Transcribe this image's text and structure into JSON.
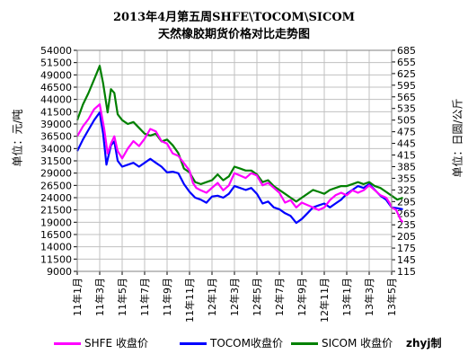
{
  "chart_data": {
    "type": "line",
    "title": "2013年4月第五周SHFE\\TOCOM\\SICOM",
    "subtitle": "天然橡胶期货价格对比走势图",
    "ylabel_left": "单位：元/吨",
    "ylabel_right": "单位：日圆/公斤",
    "author": "zhyj制",
    "x_ticks": [
      "11年1月",
      "11年3月",
      "11年5月",
      "11年7月",
      "11年9月",
      "11年11月",
      "12年1月",
      "12年3月",
      "12年5月",
      "12年7月",
      "12年9月",
      "12年11月",
      "13年1月",
      "13年3月",
      "13年5月"
    ],
    "y_left": {
      "min": 9000,
      "max": 54000,
      "step": 2500,
      "ticks": [
        "54000",
        "51500",
        "49000",
        "46500",
        "44000",
        "41500",
        "39000",
        "36500",
        "34000",
        "31500",
        "29000",
        "26500",
        "24000",
        "21500",
        "19000",
        "16500",
        "14000",
        "11500",
        "9000"
      ]
    },
    "y_right": {
      "min": 115,
      "max": 685,
      "step": 30,
      "ticks": [
        "685",
        "655",
        "625",
        "595",
        "565",
        "535",
        "505",
        "475",
        "445",
        "415",
        "385",
        "355",
        "325",
        "295",
        "265",
        "235",
        "205",
        "175",
        "145",
        "115"
      ]
    },
    "grid": true,
    "legend_position": "bottom",
    "series": [
      {
        "name": "SHFE 收盘价",
        "axis": "left",
        "color": "#ff00ff",
        "values": [
          [
            0,
            36500
          ],
          [
            0.5,
            38500
          ],
          [
            1,
            40000
          ],
          [
            1.5,
            42000
          ],
          [
            2,
            43000
          ],
          [
            2.4,
            38000
          ],
          [
            2.7,
            33000
          ],
          [
            3,
            35000
          ],
          [
            3.3,
            36500
          ],
          [
            3.6,
            33500
          ],
          [
            4,
            32000
          ],
          [
            4.5,
            34000
          ],
          [
            5,
            35500
          ],
          [
            5.5,
            34500
          ],
          [
            6,
            36000
          ],
          [
            6.5,
            38000
          ],
          [
            7,
            37500
          ],
          [
            7.5,
            35500
          ],
          [
            8,
            35000
          ],
          [
            8.5,
            33000
          ],
          [
            9,
            32500
          ],
          [
            9.5,
            31000
          ],
          [
            10,
            29500
          ],
          [
            10.3,
            27000
          ],
          [
            10.6,
            26000
          ],
          [
            11,
            25500
          ],
          [
            11.5,
            25000
          ],
          [
            12,
            26000
          ],
          [
            12.5,
            27000
          ],
          [
            13,
            25500
          ],
          [
            13.5,
            26500
          ],
          [
            14,
            29000
          ],
          [
            14.5,
            28500
          ],
          [
            15,
            28000
          ],
          [
            15.5,
            29000
          ],
          [
            16,
            28500
          ],
          [
            16.5,
            26500
          ],
          [
            17,
            27000
          ],
          [
            17.5,
            26000
          ],
          [
            18,
            25000
          ],
          [
            18.5,
            23000
          ],
          [
            19,
            23500
          ],
          [
            19.5,
            22000
          ],
          [
            20,
            23000
          ],
          [
            20.5,
            22500
          ],
          [
            21,
            22000
          ],
          [
            21.5,
            21500
          ],
          [
            22,
            22000
          ],
          [
            22.5,
            23500
          ],
          [
            23,
            24500
          ],
          [
            23.5,
            25000
          ],
          [
            24,
            24500
          ],
          [
            24.5,
            25500
          ],
          [
            25,
            25000
          ],
          [
            25.5,
            25500
          ],
          [
            26,
            26500
          ],
          [
            26.5,
            25500
          ],
          [
            27,
            24500
          ],
          [
            27.5,
            24000
          ],
          [
            27.8,
            23000
          ],
          [
            28,
            22000
          ],
          [
            28.4,
            21500
          ],
          [
            28.6,
            20500
          ],
          [
            28.8,
            19500
          ],
          [
            29,
            19000
          ]
        ]
      },
      {
        "name": "TOCOM收盘价",
        "axis": "right",
        "color": "#0000ff",
        "values": [
          [
            0,
            425
          ],
          [
            0.5,
            455
          ],
          [
            1,
            480
          ],
          [
            1.5,
            505
          ],
          [
            2,
            525
          ],
          [
            2.3,
            470
          ],
          [
            2.6,
            390
          ],
          [
            3,
            440
          ],
          [
            3.3,
            450
          ],
          [
            3.6,
            400
          ],
          [
            4,
            385
          ],
          [
            4.5,
            390
          ],
          [
            5,
            395
          ],
          [
            5.5,
            385
          ],
          [
            6,
            395
          ],
          [
            6.5,
            405
          ],
          [
            7,
            395
          ],
          [
            7.5,
            385
          ],
          [
            8,
            370
          ],
          [
            8.5,
            372
          ],
          [
            9,
            368
          ],
          [
            9.5,
            340
          ],
          [
            10,
            320
          ],
          [
            10.5,
            305
          ],
          [
            11,
            300
          ],
          [
            11.5,
            292
          ],
          [
            12,
            308
          ],
          [
            12.5,
            310
          ],
          [
            13,
            305
          ],
          [
            13.5,
            315
          ],
          [
            14,
            335
          ],
          [
            14.5,
            330
          ],
          [
            15,
            325
          ],
          [
            15.5,
            330
          ],
          [
            16,
            315
          ],
          [
            16.5,
            290
          ],
          [
            17,
            295
          ],
          [
            17.5,
            280
          ],
          [
            18,
            275
          ],
          [
            18.5,
            265
          ],
          [
            19,
            258
          ],
          [
            19.5,
            240
          ],
          [
            20,
            250
          ],
          [
            20.5,
            265
          ],
          [
            21,
            280
          ],
          [
            21.5,
            285
          ],
          [
            22,
            290
          ],
          [
            22.5,
            280
          ],
          [
            23,
            290
          ],
          [
            23.5,
            300
          ],
          [
            24,
            315
          ],
          [
            24.5,
            325
          ],
          [
            25,
            335
          ],
          [
            25.5,
            330
          ],
          [
            26,
            340
          ],
          [
            26.5,
            325
          ],
          [
            27,
            310
          ],
          [
            27.5,
            300
          ],
          [
            28,
            280
          ],
          [
            28.5,
            278
          ],
          [
            29,
            275
          ]
        ]
      },
      {
        "name": "SICOM 收盘价",
        "axis": "right",
        "color": "#008000",
        "values": [
          [
            0,
            505
          ],
          [
            0.5,
            545
          ],
          [
            1,
            575
          ],
          [
            1.5,
            610
          ],
          [
            2,
            645
          ],
          [
            2.3,
            600
          ],
          [
            2.7,
            525
          ],
          [
            3,
            585
          ],
          [
            3.3,
            575
          ],
          [
            3.6,
            520
          ],
          [
            4,
            505
          ],
          [
            4.5,
            495
          ],
          [
            5,
            500
          ],
          [
            5.5,
            485
          ],
          [
            6,
            470
          ],
          [
            6.5,
            465
          ],
          [
            7,
            470
          ],
          [
            7.5,
            450
          ],
          [
            8,
            455
          ],
          [
            8.5,
            440
          ],
          [
            9,
            420
          ],
          [
            9.5,
            380
          ],
          [
            10,
            370
          ],
          [
            10.5,
            345
          ],
          [
            11,
            340
          ],
          [
            11.5,
            345
          ],
          [
            12,
            350
          ],
          [
            12.5,
            365
          ],
          [
            13,
            350
          ],
          [
            13.5,
            360
          ],
          [
            14,
            385
          ],
          [
            14.5,
            380
          ],
          [
            15,
            375
          ],
          [
            15.5,
            375
          ],
          [
            16,
            365
          ],
          [
            16.5,
            345
          ],
          [
            17,
            350
          ],
          [
            17.5,
            335
          ],
          [
            18,
            325
          ],
          [
            18.5,
            315
          ],
          [
            19,
            305
          ],
          [
            19.5,
            295
          ],
          [
            20,
            305
          ],
          [
            20.5,
            315
          ],
          [
            21,
            325
          ],
          [
            21.5,
            320
          ],
          [
            22,
            315
          ],
          [
            22.5,
            325
          ],
          [
            23,
            330
          ],
          [
            23.5,
            335
          ],
          [
            24,
            335
          ],
          [
            24.5,
            340
          ],
          [
            25,
            345
          ],
          [
            25.5,
            340
          ],
          [
            26,
            345
          ],
          [
            26.5,
            335
          ],
          [
            27,
            330
          ],
          [
            27.5,
            320
          ],
          [
            28,
            310
          ],
          [
            28.5,
            300
          ],
          [
            29,
            305
          ]
        ]
      }
    ]
  },
  "legend": {
    "shfe": "SHFE 收盘价",
    "tocom": "TOCOM收盘价",
    "sicom": "SICOM 收盘价"
  },
  "colors": {
    "shfe": "#ff00ff",
    "tocom": "#0000ff",
    "sicom": "#008000",
    "grid": "#c0c0c0",
    "frame": "#808080"
  }
}
